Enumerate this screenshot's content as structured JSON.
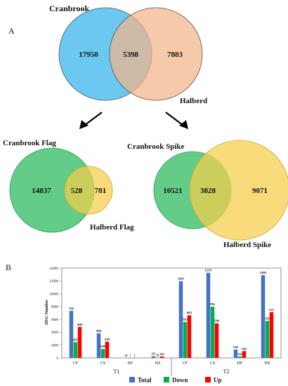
{
  "panel_a": {
    "letter": "A",
    "top": {
      "left_label": "Cranbrook",
      "right_label": "Halberd",
      "left_only": "17950",
      "overlap": "5398",
      "right_only": "7883",
      "left_color": "#5bc2ee",
      "right_color": "#f2b48b"
    },
    "flag": {
      "left_label": "Cranbrook Flag",
      "right_label": "Halberd Flag",
      "left_only": "14837",
      "overlap": "528",
      "right_only": "781",
      "left_color": "#3cbf6a",
      "right_color": "#f5cf4a"
    },
    "spike": {
      "left_label": "Cranbrook Spike",
      "right_label": "Halberd Spike",
      "left_only": "10521",
      "overlap": "3828",
      "right_only": "9071",
      "left_color": "#3cbf6a",
      "right_color": "#f5cf4a"
    }
  },
  "chart_data": {
    "type": "bar",
    "panel_letter": "B",
    "ylabel": "DEG Number",
    "ylim": [
      0,
      14000
    ],
    "yticks": [
      "0",
      "2000",
      "4000",
      "6000",
      "8000",
      "10000",
      "12000",
      "14000"
    ],
    "categories": [
      "CF",
      "CS",
      "HF",
      "HS",
      "CF",
      "CS",
      "HF",
      "HS"
    ],
    "groups": [
      {
        "label": "T1",
        "span": [
          0,
          3
        ]
      },
      {
        "label": "T2",
        "span": [
          4,
          7
        ]
      }
    ],
    "series": [
      {
        "name": "Total",
        "color": "#4472c4",
        "values": [
          7342,
          3838,
          10,
          255,
          11963,
          13270,
          1301,
          12892
        ],
        "labels": [
          "7342",
          "3838",
          "10",
          "255",
          "11963",
          "13270",
          "1301",
          "12892"
        ]
      },
      {
        "name": "Down",
        "color": "#00b050",
        "values": [
          2457,
          1396,
          7,
          29,
          5612,
          7981,
          238,
          5765
        ],
        "labels": [
          "2457",
          "1396",
          "7",
          "29",
          "5612",
          "7981",
          "238",
          "5765"
        ]
      },
      {
        "name": "Up",
        "color": "#ff0000",
        "values": [
          4838,
          2528,
          3,
          226,
          6651,
          5389,
          1063,
          7127
        ],
        "labels": [
          "4838",
          "2528",
          "3",
          "226",
          "6651",
          "5389",
          "1063",
          "7127"
        ]
      }
    ],
    "legend_position": "bottom",
    "grid": false
  }
}
